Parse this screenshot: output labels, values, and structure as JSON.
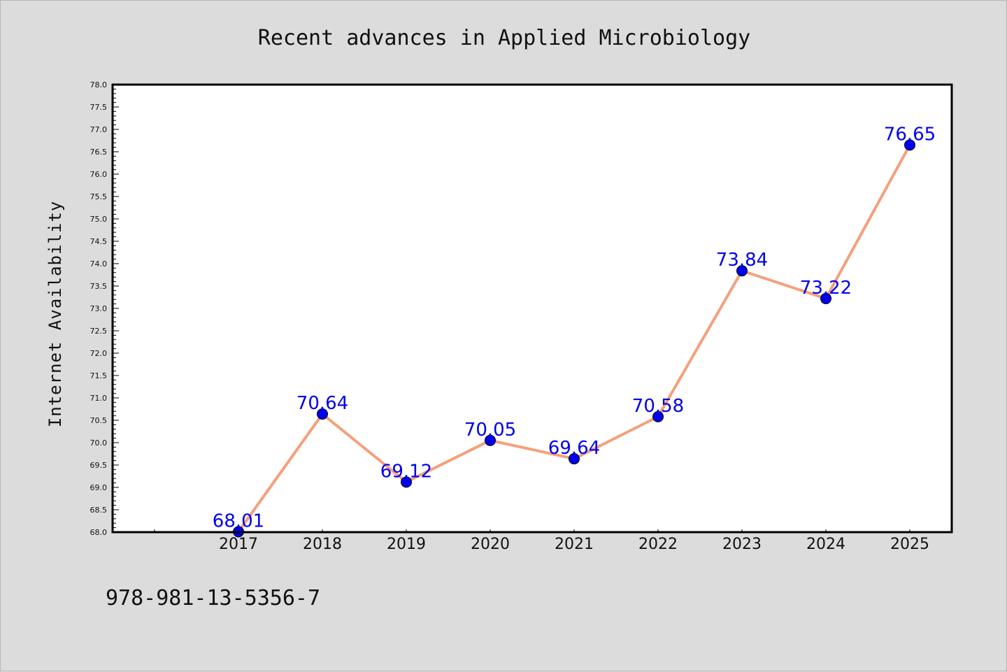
{
  "chart_data": {
    "type": "line",
    "title": "Recent advances in Applied Microbiology",
    "xlabel": "",
    "ylabel": "Internet Availability",
    "categories": [
      "2017",
      "2018",
      "2019",
      "2020",
      "2021",
      "2022",
      "2023",
      "2024",
      "2025"
    ],
    "series": [
      {
        "values": [
          68.01,
          70.64,
          69.12,
          70.05,
          69.64,
          70.58,
          73.84,
          73.22,
          76.65
        ],
        "line_color": "#f4a07c",
        "marker_color": "#0000ee"
      }
    ],
    "data_labels": [
      "68.01",
      "70.64",
      "69.12",
      "70.05",
      "69.64",
      "70.58",
      "73.84",
      "73.22",
      "76.65"
    ],
    "ylim": [
      68.0,
      78.0
    ],
    "ytick_step": 0.5,
    "grid": false,
    "legend": "none",
    "plot_background": "#ffffff",
    "page_background": "#dcdcdc"
  },
  "footer_text": "978-981-13-5356-7"
}
